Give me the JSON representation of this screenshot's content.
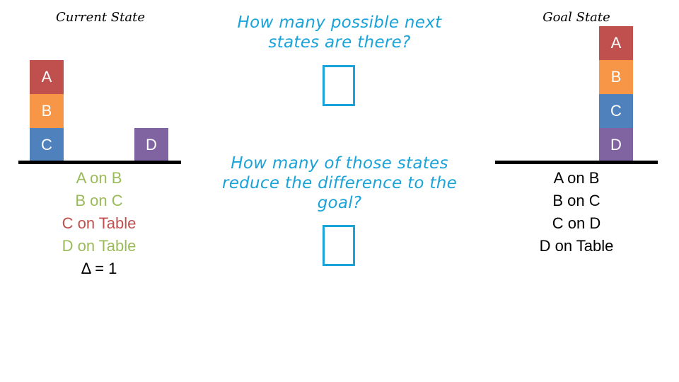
{
  "colors": {
    "block_A": "#c0504d",
    "block_B": "#f79646",
    "block_C": "#4f81bd",
    "block_D": "#8064a2",
    "satisfied": "#9bbb59",
    "unsatisfied": "#c0504d",
    "question": "#1aa3d9"
  },
  "current": {
    "title": "Current State",
    "stack_blocks": [
      "A",
      "B",
      "C"
    ],
    "single_block": "D",
    "relations": [
      {
        "text": "A on B",
        "status": "satisfied"
      },
      {
        "text": "B on C",
        "status": "satisfied"
      },
      {
        "text": "C on Table",
        "status": "unsatisfied"
      },
      {
        "text": "D on Table",
        "status": "satisfied"
      }
    ],
    "delta": "Δ = 1"
  },
  "questions": {
    "q1": "How many possible next states are there?",
    "q2": "How many of those states reduce the difference to the goal?"
  },
  "goal": {
    "title": "Goal State",
    "stack_blocks": [
      "A",
      "B",
      "C",
      "D"
    ],
    "relations": [
      "A on B",
      "B on C",
      "C on D",
      "D on Table"
    ]
  }
}
